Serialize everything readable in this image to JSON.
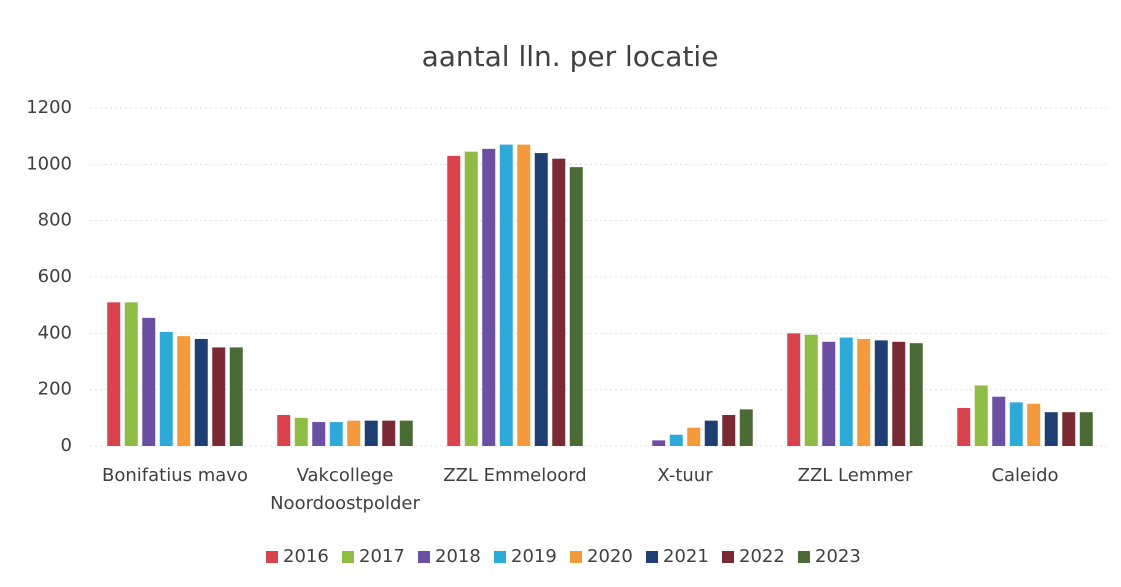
{
  "chart_data": {
    "type": "bar",
    "title": "aantal lln. per locatie",
    "categories": [
      "Bonifatius mavo",
      "Vakcollege Noordoostpolder",
      "ZZL Emmeloord",
      "X-tuur",
      "ZZL Lemmer",
      "Caleido"
    ],
    "series": [
      {
        "name": "2016",
        "color": "#d9434e",
        "values": [
          510,
          110,
          1030,
          null,
          400,
          135
        ]
      },
      {
        "name": "2017",
        "color": "#8fbc45",
        "values": [
          510,
          100,
          1045,
          null,
          395,
          215
        ]
      },
      {
        "name": "2018",
        "color": "#6a4fa3",
        "values": [
          455,
          85,
          1055,
          20,
          370,
          175
        ]
      },
      {
        "name": "2019",
        "color": "#2eaad8",
        "values": [
          405,
          85,
          1070,
          40,
          385,
          155
        ]
      },
      {
        "name": "2020",
        "color": "#f59a3a",
        "values": [
          390,
          90,
          1070,
          65,
          380,
          150
        ]
      },
      {
        "name": "2021",
        "color": "#1f3f73",
        "values": [
          380,
          90,
          1040,
          90,
          375,
          120
        ]
      },
      {
        "name": "2022",
        "color": "#7a2a33",
        "values": [
          350,
          90,
          1020,
          110,
          370,
          120
        ]
      },
      {
        "name": "2023",
        "color": "#4a6b35",
        "values": [
          350,
          90,
          990,
          130,
          365,
          120
        ]
      }
    ],
    "ylim": [
      0,
      1200
    ],
    "yticks": [
      0,
      200,
      400,
      600,
      800,
      1000,
      1200
    ],
    "grid": true,
    "legend": "bottom"
  }
}
